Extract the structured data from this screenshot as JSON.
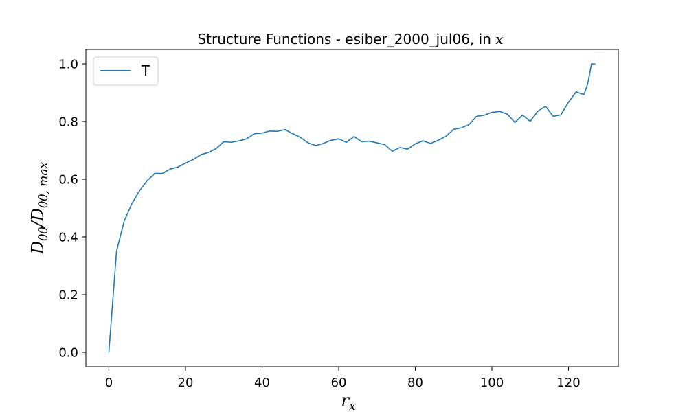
{
  "chart_data": {
    "type": "line",
    "title_main": "Structure Functions - esiber_2000_jul06, in ",
    "title_var": "x",
    "xlabel": "r",
    "xlabel_sub": "x",
    "ylabel": "Dθθ/Dθθ,max",
    "ylabel_parts": {
      "D1": "D",
      "s1": "θθ",
      "slash": "/",
      "D2": "D",
      "s2": "θθ, max"
    },
    "xlim": [
      -6,
      133
    ],
    "ylim": [
      -0.05,
      1.05
    ],
    "xticks": [
      0,
      20,
      40,
      60,
      80,
      100,
      120
    ],
    "xtick_labels": [
      "0",
      "20",
      "40",
      "60",
      "80",
      "100",
      "120"
    ],
    "yticks": [
      0.0,
      0.2,
      0.4,
      0.6,
      0.8,
      1.0
    ],
    "ytick_labels": [
      "0.0",
      "0.2",
      "0.4",
      "0.6",
      "0.8",
      "1.0"
    ],
    "legend_position": "top-left",
    "grid": false,
    "series": [
      {
        "name": "T",
        "color": "#1f77b4",
        "x": [
          0,
          2,
          4,
          6,
          8,
          10,
          12,
          14,
          16,
          18,
          20,
          22,
          24,
          26,
          28,
          30,
          32,
          34,
          36,
          38,
          40,
          42,
          44,
          46,
          48,
          50,
          52,
          54,
          56,
          58,
          60,
          62,
          64,
          66,
          68,
          70,
          72,
          74,
          76,
          78,
          80,
          82,
          84,
          86,
          88,
          90,
          92,
          94,
          96,
          98,
          100,
          102,
          104,
          106,
          108,
          110,
          112,
          114,
          116,
          118,
          120,
          122,
          124,
          125,
          126,
          127
        ],
        "y": [
          0.0,
          0.35,
          0.455,
          0.515,
          0.56,
          0.595,
          0.62,
          0.62,
          0.635,
          0.642,
          0.656,
          0.668,
          0.685,
          0.693,
          0.706,
          0.73,
          0.728,
          0.733,
          0.74,
          0.758,
          0.76,
          0.767,
          0.766,
          0.772,
          0.758,
          0.745,
          0.726,
          0.717,
          0.724,
          0.735,
          0.74,
          0.728,
          0.748,
          0.73,
          0.732,
          0.726,
          0.72,
          0.697,
          0.71,
          0.704,
          0.723,
          0.733,
          0.724,
          0.735,
          0.749,
          0.773,
          0.778,
          0.789,
          0.818,
          0.822,
          0.832,
          0.835,
          0.826,
          0.797,
          0.822,
          0.801,
          0.836,
          0.853,
          0.818,
          0.823,
          0.867,
          0.903,
          0.893,
          0.93,
          1.0,
          1.0
        ]
      }
    ]
  }
}
